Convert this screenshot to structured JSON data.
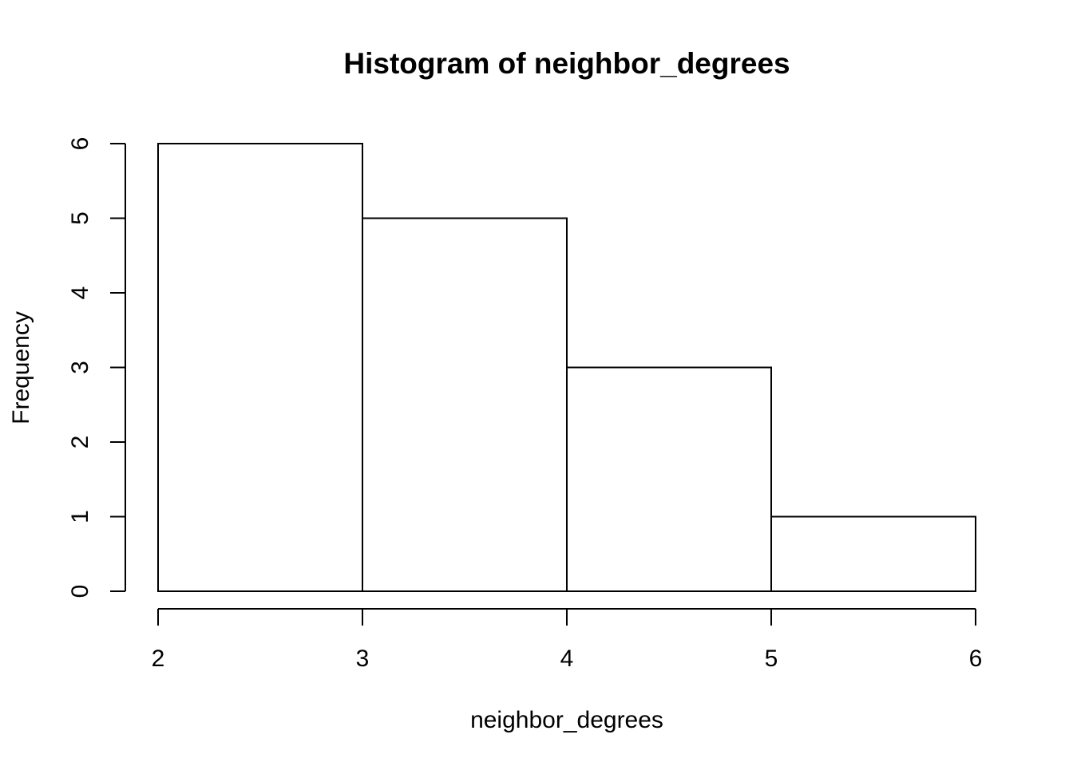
{
  "chart_data": {
    "type": "bar",
    "title": "Histogram of neighbor_degrees",
    "xlabel": "neighbor_degrees",
    "ylabel": "Frequency",
    "bins": [
      {
        "start": 2,
        "end": 3,
        "count": 6
      },
      {
        "start": 3,
        "end": 4,
        "count": 5
      },
      {
        "start": 4,
        "end": 5,
        "count": 3
      },
      {
        "start": 5,
        "end": 6,
        "count": 1
      }
    ],
    "x_ticks": [
      "2",
      "3",
      "4",
      "5",
      "6"
    ],
    "y_ticks": [
      "0",
      "1",
      "2",
      "3",
      "4",
      "5",
      "6"
    ],
    "xlim": [
      2,
      6
    ],
    "ylim": [
      0,
      6
    ],
    "grid": false,
    "colors": {
      "bar_fill": "#ffffff",
      "bar_stroke": "#000000"
    }
  }
}
